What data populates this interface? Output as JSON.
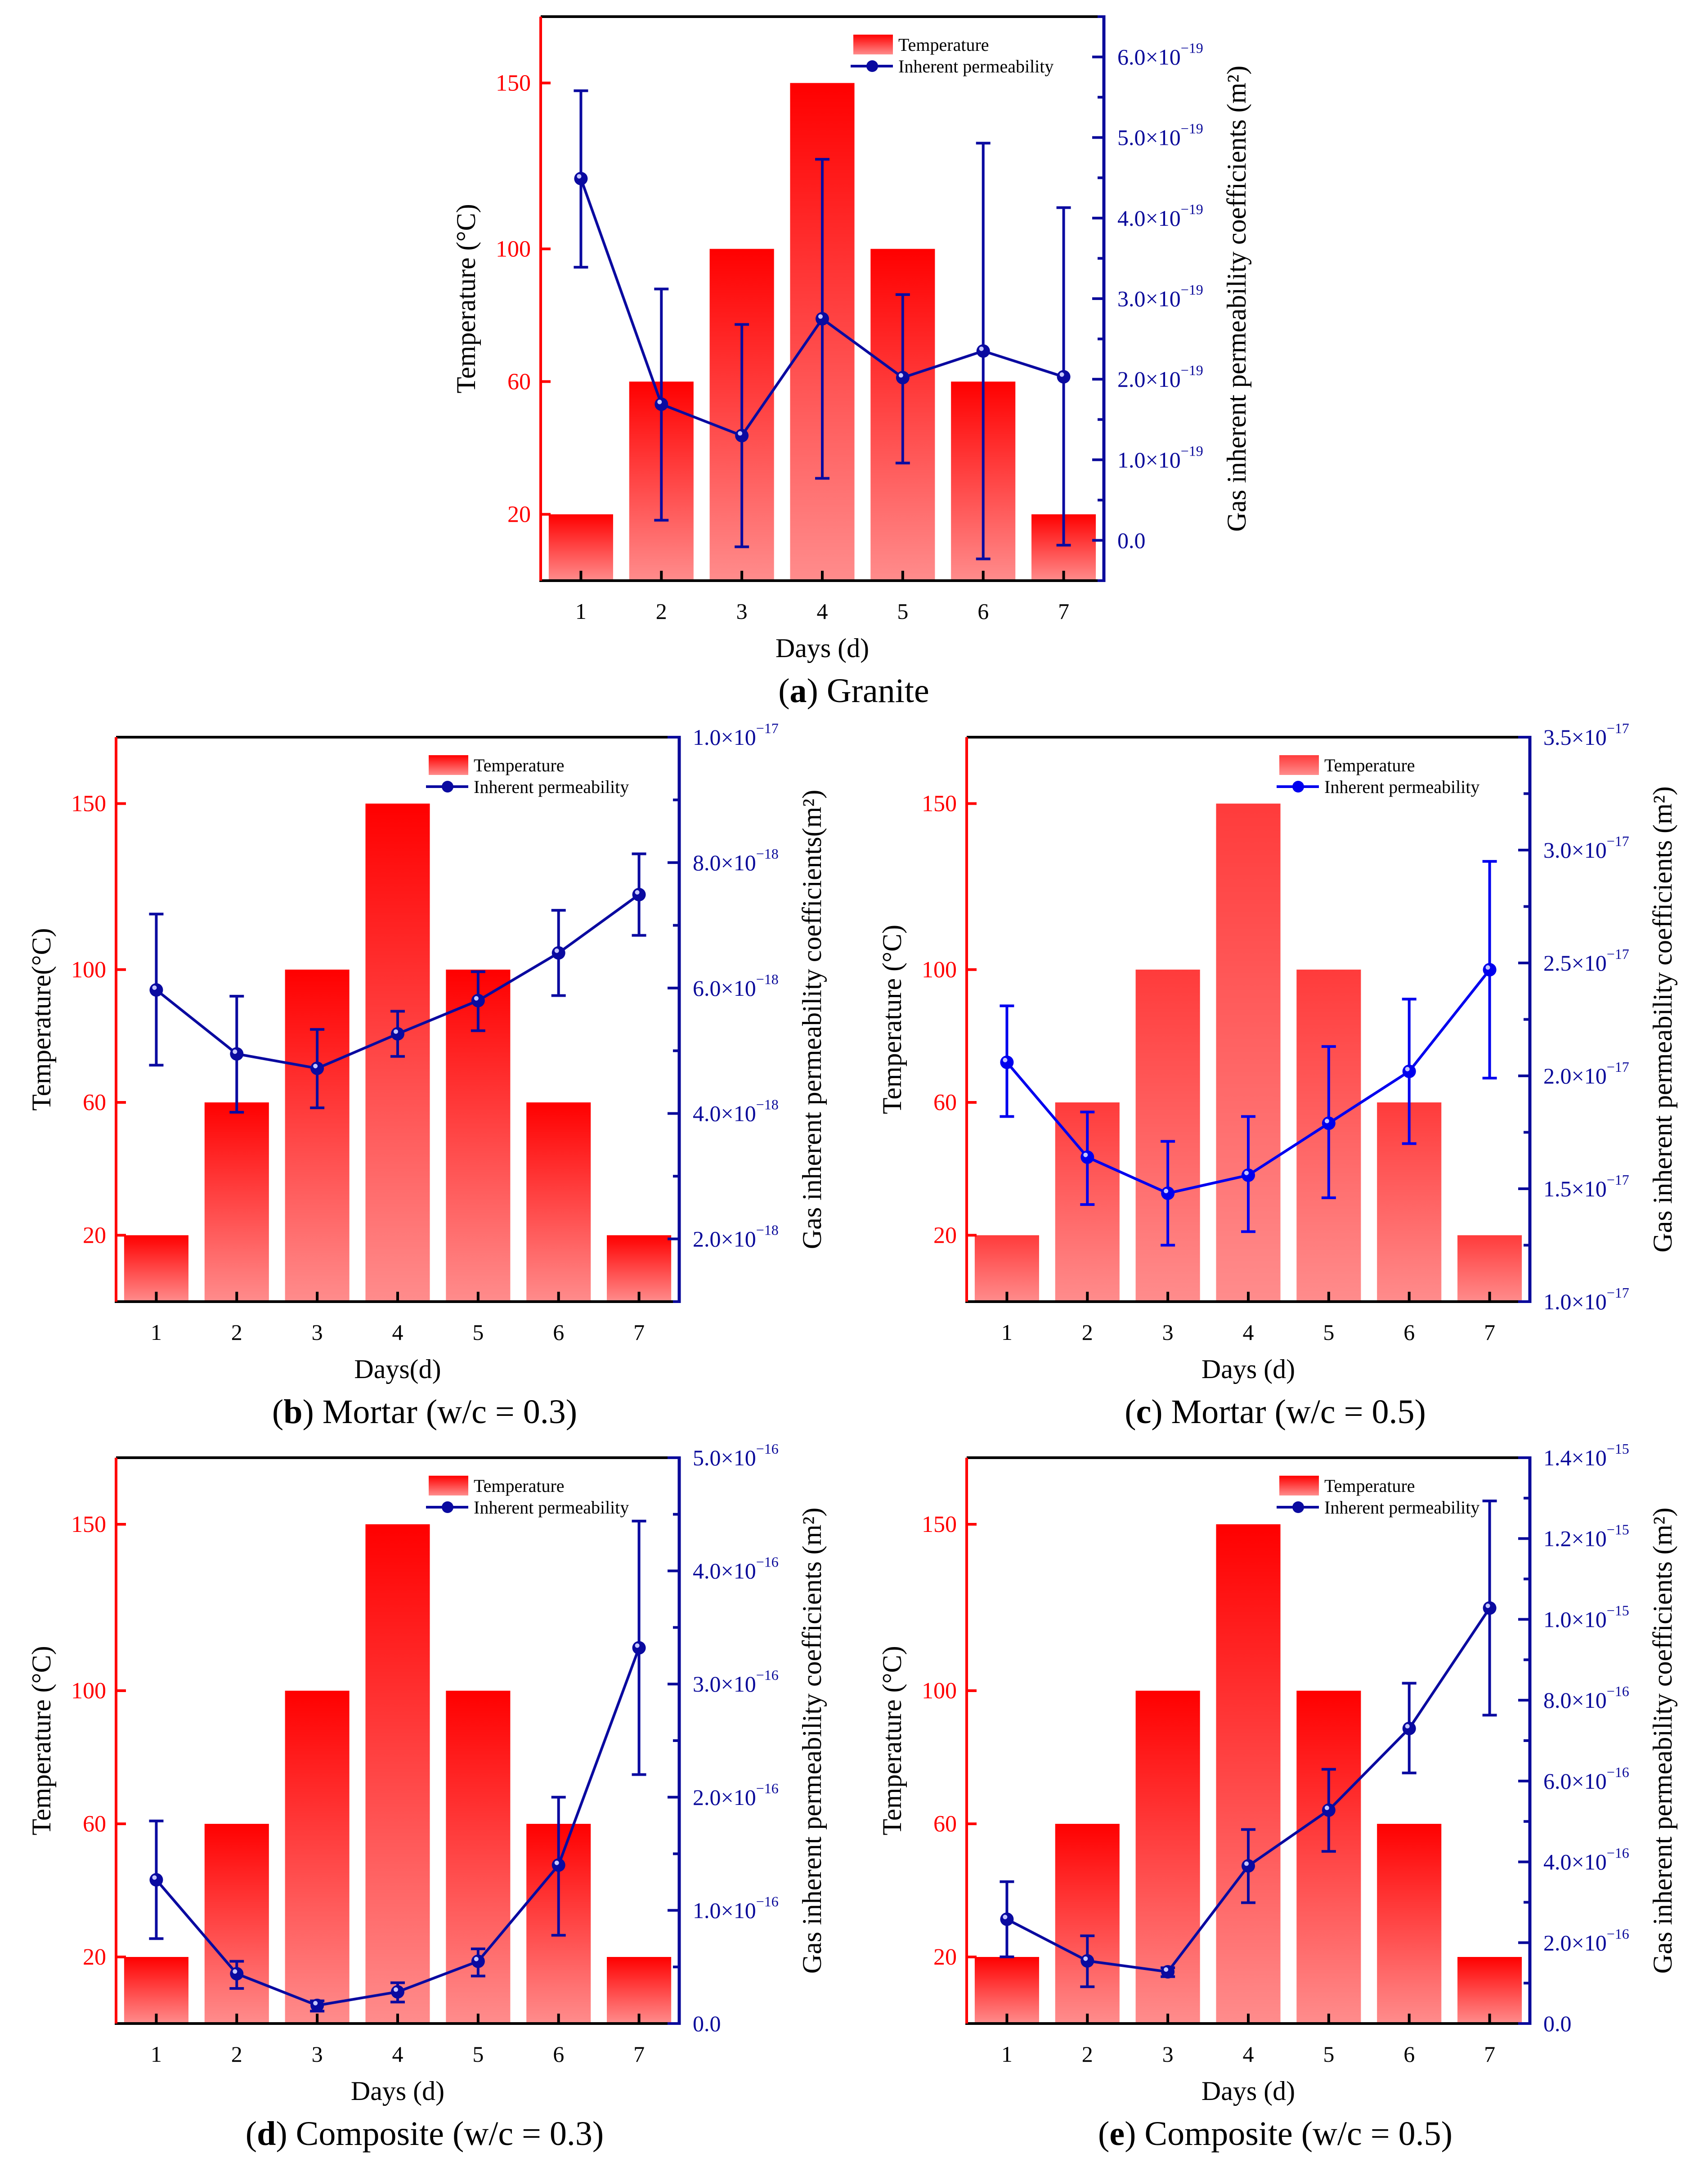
{
  "chart_data": [
    {
      "panel": "a",
      "type": "bar+line",
      "caption_parts": [
        "(",
        "a",
        ") Granite"
      ],
      "categories": [
        1,
        2,
        3,
        4,
        5,
        6,
        7
      ],
      "xlabel": "Days (d)",
      "ylabel_left": "Temperature (°C)",
      "ylabel_right": "Gas inherent permeability coefficients (m²)",
      "xlim": [
        0.5,
        7.5
      ],
      "ylim_left": [
        0,
        170
      ],
      "left_ticks": [
        20,
        60,
        100,
        150
      ],
      "ylim_right": [
        -5e-20,
        6.5e-19
      ],
      "right_ticks": [
        {
          "value": 0,
          "base": "0.0",
          "exp": ""
        },
        {
          "value": 1e-19,
          "base": "1.0×10",
          "exp": "−19"
        },
        {
          "value": 2e-19,
          "base": "2.0×10",
          "exp": "−19"
        },
        {
          "value": 3e-19,
          "base": "3.0×10",
          "exp": "−19"
        },
        {
          "value": 4e-19,
          "base": "4.0×10",
          "exp": "−19"
        },
        {
          "value": 5e-19,
          "base": "5.0×10",
          "exp": "−19"
        },
        {
          "value": 6e-19,
          "base": "6.0×10",
          "exp": "−19"
        }
      ],
      "legend": [
        "Temperature",
        "Inherent permeability"
      ],
      "legend_position": "top-right",
      "grid": false,
      "colors": {
        "bar_top": "#ff0000",
        "bar_bottom": "#ff8c8c",
        "line": "#0a0aa0",
        "left_axis": "#ff0000",
        "right_axis": "#0a0a9a"
      },
      "series": [
        {
          "name": "Temperature",
          "type": "bar",
          "values": [
            20,
            60,
            100,
            150,
            100,
            60,
            20
          ]
        },
        {
          "name": "Inherent permeability",
          "type": "line",
          "values": [
            4.49e-19,
            1.69e-19,
            1.3e-19,
            2.75e-19,
            2.02e-19,
            2.35e-19,
            2.03e-19
          ],
          "error_low": [
            3.39e-19,
            2.5e-20,
            -8e-21,
            7.7e-20,
            9.6e-20,
            -2.3e-20,
            -6e-21
          ],
          "error_high": [
            5.58e-19,
            3.12e-19,
            2.68e-19,
            4.73e-19,
            3.05e-19,
            4.93e-19,
            4.13e-19
          ]
        }
      ]
    },
    {
      "panel": "b",
      "type": "bar+line",
      "caption_parts": [
        "(",
        "b",
        ") Mortar (w/c = 0.3)"
      ],
      "categories": [
        1,
        2,
        3,
        4,
        5,
        6,
        7
      ],
      "xlabel": "Days(d)",
      "ylabel_left": "Temperature(°C)",
      "ylabel_right": "Gas inherent permeability coefficients(m²)",
      "xlim": [
        0.5,
        7.5
      ],
      "ylim_left": [
        0,
        170
      ],
      "left_ticks": [
        20,
        60,
        100,
        150
      ],
      "ylim_right": [
        1e-18,
        1e-17
      ],
      "right_ticks": [
        {
          "value": 2e-18,
          "base": "2.0×10",
          "exp": "−18"
        },
        {
          "value": 4e-18,
          "base": "4.0×10",
          "exp": "−18"
        },
        {
          "value": 6e-18,
          "base": "6.0×10",
          "exp": "−18"
        },
        {
          "value": 8e-18,
          "base": "8.0×10",
          "exp": "−18"
        },
        {
          "value": 1e-17,
          "base": "1.0×10",
          "exp": "−17"
        }
      ],
      "legend": [
        "Temperature",
        "Inherent permeability"
      ],
      "legend_position": "top-right",
      "grid": false,
      "colors": {
        "bar_top": "#ff0000",
        "bar_bottom": "#ff8c8c",
        "line": "#0a0aa0",
        "left_axis": "#ff0000",
        "right_axis": "#0a0a9a"
      },
      "series": [
        {
          "name": "Temperature",
          "type": "bar",
          "values": [
            20,
            60,
            100,
            150,
            100,
            60,
            20
          ]
        },
        {
          "name": "Inherent permeability",
          "type": "line",
          "values": [
            5.97e-18,
            4.95e-18,
            4.72e-18,
            5.27e-18,
            5.8e-18,
            6.56e-18,
            7.49e-18
          ],
          "error_low": [
            4.77e-18,
            4.02e-18,
            4.09e-18,
            4.91e-18,
            5.32e-18,
            5.88e-18,
            6.84e-18
          ],
          "error_high": [
            7.18e-18,
            5.87e-18,
            5.34e-18,
            5.63e-18,
            6.26e-18,
            7.24e-18,
            8.14e-18
          ]
        }
      ]
    },
    {
      "panel": "c",
      "type": "bar+line",
      "caption_parts": [
        "(",
        "c",
        ") Mortar (w/c = 0.5)"
      ],
      "categories": [
        1,
        2,
        3,
        4,
        5,
        6,
        7
      ],
      "xlabel": "Days (d)",
      "ylabel_left": "Temperature (°C)",
      "ylabel_right": "Gas inherent permeability coefficients (m²)",
      "xlim": [
        0.5,
        7.5
      ],
      "ylim_left": [
        0,
        170
      ],
      "left_ticks": [
        20,
        60,
        100,
        150
      ],
      "ylim_right": [
        1e-17,
        3.5e-17
      ],
      "right_ticks": [
        {
          "value": 1e-17,
          "base": "1.0×10",
          "exp": "−17"
        },
        {
          "value": 1.5e-17,
          "base": "1.5×10",
          "exp": "−17"
        },
        {
          "value": 2e-17,
          "base": "2.0×10",
          "exp": "−17"
        },
        {
          "value": 2.5e-17,
          "base": "2.5×10",
          "exp": "−17"
        },
        {
          "value": 3e-17,
          "base": "3.0×10",
          "exp": "−17"
        },
        {
          "value": 3.5e-17,
          "base": "3.5×10",
          "exp": "−17"
        }
      ],
      "legend": [
        "Temperature",
        "Inherent permeability"
      ],
      "legend_position": "top-right",
      "grid": false,
      "colors": {
        "bar_top": "#ff3b3b",
        "bar_bottom": "#ff8c8c",
        "line": "#0000ee",
        "left_axis": "#ff0000",
        "right_axis": "#0a0a9a"
      },
      "series": [
        {
          "name": "Temperature",
          "type": "bar",
          "values": [
            20,
            60,
            100,
            150,
            100,
            60,
            20
          ]
        },
        {
          "name": "Inherent permeability",
          "type": "line",
          "values": [
            2.06e-17,
            1.64e-17,
            1.48e-17,
            1.56e-17,
            1.79e-17,
            2.02e-17,
            2.47e-17
          ],
          "error_low": [
            1.82e-17,
            1.43e-17,
            1.25e-17,
            1.31e-17,
            1.46e-17,
            1.7e-17,
            1.99e-17
          ],
          "error_high": [
            2.31e-17,
            1.84e-17,
            1.71e-17,
            1.82e-17,
            2.13e-17,
            2.34e-17,
            2.95e-17
          ]
        }
      ]
    },
    {
      "panel": "d",
      "type": "bar+line",
      "caption_parts": [
        "(",
        "d",
        ") Composite (w/c = 0.3)"
      ],
      "categories": [
        1,
        2,
        3,
        4,
        5,
        6,
        7
      ],
      "xlabel": "Days (d)",
      "ylabel_left": "Temperature (°C)",
      "ylabel_right": "Gas inherent permeability coefficients (m²)",
      "xlim": [
        0.5,
        7.5
      ],
      "ylim_left": [
        0,
        170
      ],
      "left_ticks": [
        20,
        60,
        100,
        150
      ],
      "ylim_right": [
        0,
        5e-16
      ],
      "right_ticks": [
        {
          "value": 0,
          "base": "0.0",
          "exp": ""
        },
        {
          "value": 1e-16,
          "base": "1.0×10",
          "exp": "−16"
        },
        {
          "value": 2e-16,
          "base": "2.0×10",
          "exp": "−16"
        },
        {
          "value": 3e-16,
          "base": "3.0×10",
          "exp": "−16"
        },
        {
          "value": 4e-16,
          "base": "4.0×10",
          "exp": "−16"
        },
        {
          "value": 5e-16,
          "base": "5.0×10",
          "exp": "−16"
        }
      ],
      "legend": [
        "Temperature",
        "Inherent permeability"
      ],
      "legend_position": "top-right",
      "grid": false,
      "colors": {
        "bar_top": "#ff0000",
        "bar_bottom": "#ff8c8c",
        "line": "#0a0aa0",
        "left_axis": "#ff0000",
        "right_axis": "#0a0a9a"
      },
      "series": [
        {
          "name": "Temperature",
          "type": "bar",
          "values": [
            20,
            60,
            100,
            150,
            100,
            60,
            20
          ]
        },
        {
          "name": "Inherent permeability",
          "type": "line",
          "values": [
            1.27e-16,
            4.4e-17,
            1.6e-17,
            2.8e-17,
            5.5e-17,
            1.4e-16,
            3.32e-16
          ],
          "error_low": [
            7.5e-17,
            3.1e-17,
            1.1e-17,
            1.9e-17,
            4.2e-17,
            7.8e-17,
            2.2e-16
          ],
          "error_high": [
            1.79e-16,
            5.5e-17,
            2e-17,
            3.6e-17,
            6.6e-17,
            2e-16,
            4.44e-16
          ]
        }
      ]
    },
    {
      "panel": "e",
      "type": "bar+line",
      "caption_parts": [
        "(",
        "e",
        ") Composite (w/c = 0.5)"
      ],
      "categories": [
        1,
        2,
        3,
        4,
        5,
        6,
        7
      ],
      "xlabel": "Days (d)",
      "ylabel_left": "Temperature (°C)",
      "ylabel_right": "Gas inherent permeability coefficients (m²)",
      "xlim": [
        0.5,
        7.5
      ],
      "ylim_left": [
        0,
        170
      ],
      "left_ticks": [
        20,
        60,
        100,
        150
      ],
      "ylim_right": [
        0,
        1.4e-15
      ],
      "right_ticks": [
        {
          "value": 0,
          "base": "0.0",
          "exp": ""
        },
        {
          "value": 2e-16,
          "base": "2.0×10",
          "exp": "−16"
        },
        {
          "value": 4e-16,
          "base": "4.0×10",
          "exp": "−16"
        },
        {
          "value": 6e-16,
          "base": "6.0×10",
          "exp": "−16"
        },
        {
          "value": 8e-16,
          "base": "8.0×10",
          "exp": "−16"
        },
        {
          "value": 1e-15,
          "base": "1.0×10",
          "exp": "−15"
        },
        {
          "value": 1.2e-15,
          "base": "1.2×10",
          "exp": "−15"
        },
        {
          "value": 1.4e-15,
          "base": "1.4×10",
          "exp": "−15"
        }
      ],
      "legend": [
        "Temperature",
        "Inherent permeability"
      ],
      "legend_position": "top-right",
      "grid": false,
      "colors": {
        "bar_top": "#ff0000",
        "bar_bottom": "#ff8c8c",
        "line": "#0a0aa0",
        "left_axis": "#ff0000",
        "right_axis": "#0a0a9a"
      },
      "series": [
        {
          "name": "Temperature",
          "type": "bar",
          "values": [
            20,
            60,
            100,
            150,
            100,
            60,
            20
          ]
        },
        {
          "name": "Inherent permeability",
          "type": "line",
          "values": [
            2.58e-16,
            1.55e-16,
            1.28e-16,
            3.9e-16,
            5.28e-16,
            7.3e-16,
            1.028e-15
          ],
          "error_low": [
            1.65e-16,
            9.1e-17,
            1.16e-16,
            2.99e-16,
            4.26e-16,
            6.2e-16,
            7.63e-16
          ],
          "error_high": [
            3.51e-16,
            2.17e-16,
            1.38e-16,
            4.8e-16,
            6.29e-16,
            8.42e-16,
            1.293e-15
          ]
        }
      ]
    }
  ]
}
